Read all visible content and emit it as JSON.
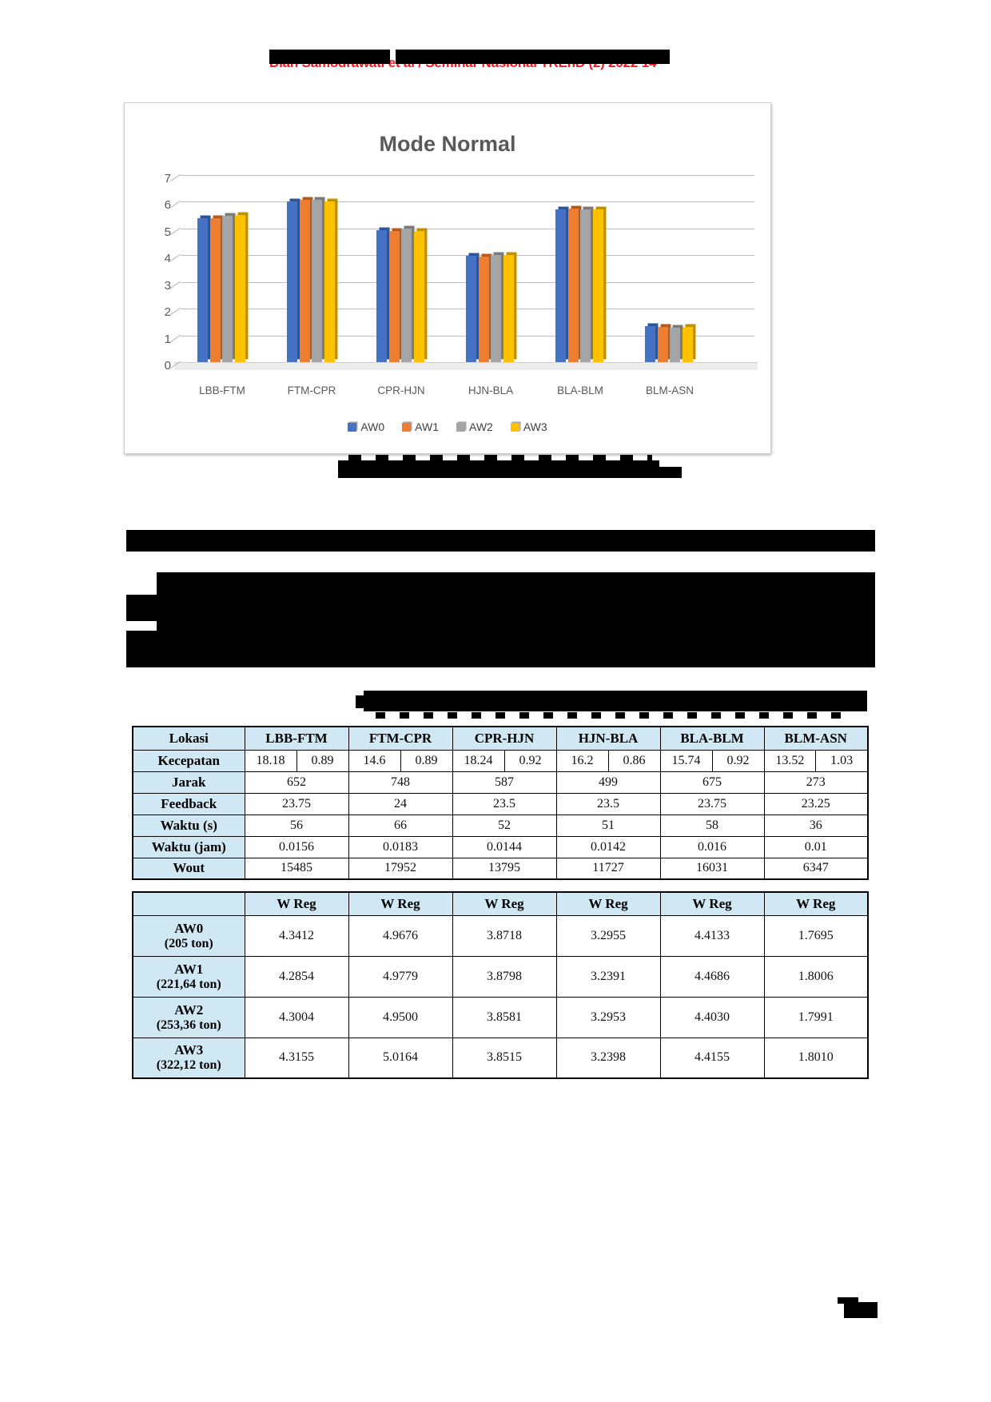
{
  "header": {
    "text": "Dian Samodrawati et al / Seminar Nasional TREnD (2) 2022 14",
    "color": "#ed1c24"
  },
  "chart_data": {
    "type": "bar",
    "title": "Mode Normal",
    "title_color": "#595959",
    "categories": [
      "LBB-FTM",
      "FTM-CPR",
      "CPR-HJN",
      "HJN-BLA",
      "BLA-BLM",
      "BLM-ASN"
    ],
    "series": [
      {
        "name": "AW0",
        "color": "#4472C4",
        "shade": "#2e5496",
        "values": [
          5.38,
          6.0,
          4.95,
          3.98,
          5.7,
          1.35
        ]
      },
      {
        "name": "AW1",
        "color": "#ED7D31",
        "shade": "#b55a1b",
        "values": [
          5.38,
          6.08,
          4.9,
          3.95,
          5.75,
          1.32
        ]
      },
      {
        "name": "AW2",
        "color": "#A5A5A5",
        "shade": "#7b7b7b",
        "values": [
          5.48,
          6.08,
          5.0,
          4.0,
          5.72,
          1.3
        ]
      },
      {
        "name": "AW3",
        "color": "#FFC000",
        "shade": "#bf9000",
        "values": [
          5.5,
          6.0,
          4.9,
          4.0,
          5.7,
          1.32
        ]
      }
    ],
    "ylim": [
      0,
      7
    ],
    "yticks": [
      0,
      1,
      2,
      3,
      4,
      5,
      6,
      7
    ],
    "grid": true,
    "legend_position": "bottom"
  },
  "table1": {
    "header": {
      "label": "Lokasi",
      "columns": [
        "LBB-FTM",
        "FTM-CPR",
        "CPR-HJN",
        "HJN-BLA",
        "BLA-BLM",
        "BLM-ASN"
      ]
    },
    "rows": [
      {
        "label": "Kecepatan",
        "split": true,
        "values": [
          [
            "18.18",
            "0.89"
          ],
          [
            "14.6",
            "0.89"
          ],
          [
            "18.24",
            "0.92"
          ],
          [
            "16.2",
            "0.86"
          ],
          [
            "15.74",
            "0.92"
          ],
          [
            "13.52",
            "1.03"
          ]
        ]
      },
      {
        "label": "Jarak",
        "values": [
          "652",
          "748",
          "587",
          "499",
          "675",
          "273"
        ]
      },
      {
        "label": "Feedback",
        "values": [
          "23.75",
          "24",
          "23.5",
          "23.5",
          "23.75",
          "23.25"
        ]
      },
      {
        "label": "Waktu (s)",
        "values": [
          "56",
          "66",
          "52",
          "51",
          "58",
          "36"
        ]
      },
      {
        "label": "Waktu (jam)",
        "values": [
          "0.0156",
          "0.0183",
          "0.0144",
          "0.0142",
          "0.016",
          "0.01"
        ]
      },
      {
        "label": "Wout",
        "values": [
          "15485",
          "17952",
          "13795",
          "11727",
          "16031",
          "6347"
        ]
      }
    ]
  },
  "table2": {
    "corner_label": "",
    "columns": [
      "W Reg",
      "W Reg",
      "W Reg",
      "W Reg",
      "W Reg",
      "W Reg"
    ],
    "rows": [
      {
        "label": "AW0",
        "sublabel": "(205 ton)",
        "values": [
          "4.3412",
          "4.9676",
          "3.8718",
          "3.2955",
          "4.4133",
          "1.7695"
        ]
      },
      {
        "label": "AW1",
        "sublabel": "(221,64 ton)",
        "values": [
          "4.2854",
          "4.9779",
          "3.8798",
          "3.2391",
          "4.4686",
          "1.8006"
        ]
      },
      {
        "label": "AW2",
        "sublabel": "(253,36 ton)",
        "values": [
          "4.3004",
          "4.9500",
          "3.8581",
          "3.2953",
          "4.4030",
          "1.7991"
        ]
      },
      {
        "label": "AW3",
        "sublabel": "(322,12 ton)",
        "values": [
          "4.3155",
          "5.0164",
          "3.8515",
          "3.2398",
          "4.4155",
          "1.8010"
        ]
      }
    ]
  }
}
